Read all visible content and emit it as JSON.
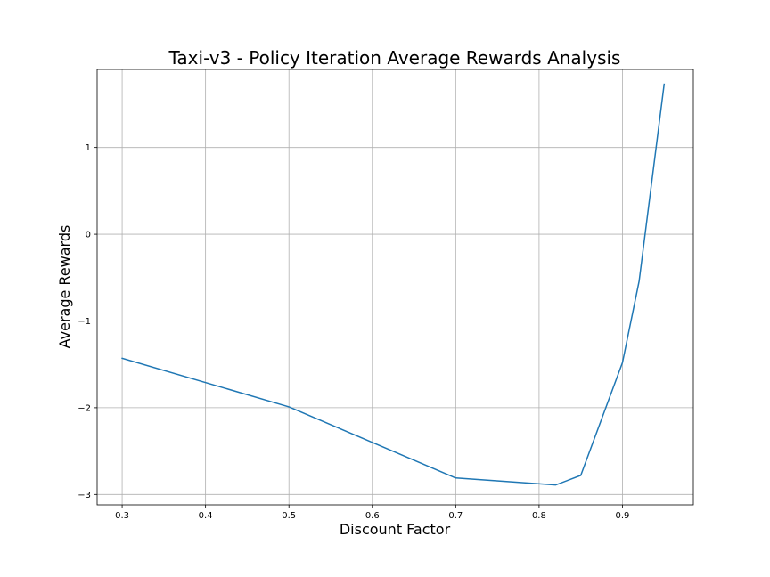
{
  "chart_data": {
    "type": "line",
    "title": "Taxi-v3 - Policy Iteration Average Rewards Analysis",
    "xlabel": "Discount Factor",
    "ylabel": "Average Rewards",
    "x": [
      0.3,
      0.5,
      0.7,
      0.82,
      0.85,
      0.9,
      0.92,
      0.95
    ],
    "series": [
      {
        "values": [
          -1.43,
          -1.99,
          -2.81,
          -2.89,
          -2.78,
          -1.48,
          -0.54,
          1.73
        ]
      }
    ],
    "xlim": [
      0.27,
      0.985
    ],
    "ylim": [
      -3.12,
      1.9
    ],
    "xticks": [
      0.3,
      0.4,
      0.5,
      0.6,
      0.7,
      0.8,
      0.9
    ],
    "xtick_labels": [
      "0.3",
      "0.4",
      "0.5",
      "0.6",
      "0.7",
      "0.8",
      "0.9"
    ],
    "yticks": [
      -3,
      -2,
      -1,
      0,
      1
    ],
    "ytick_labels": [
      "−3",
      "−2",
      "−1",
      "0",
      "1"
    ],
    "grid": true,
    "line_color": "#1f77b4"
  }
}
